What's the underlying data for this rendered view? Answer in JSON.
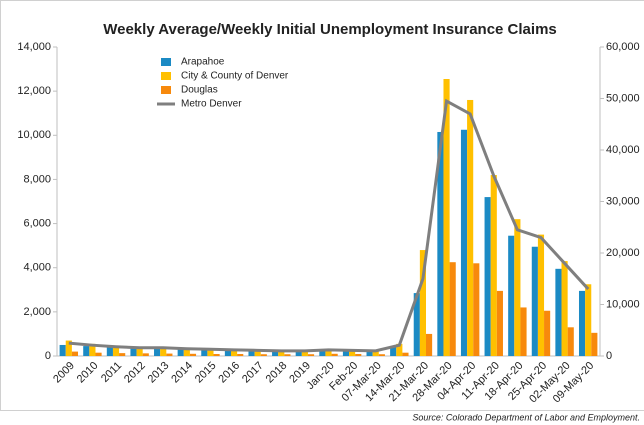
{
  "chart_data": {
    "type": "bar+line",
    "title": "Weekly Average/Weekly Initial Unemployment Insurance Claims",
    "source": "Source: Colorado Department of Labor and Employment.",
    "categories": [
      "2009",
      "2010",
      "2011",
      "2012",
      "2013",
      "2014",
      "2015",
      "2016",
      "2017",
      "2018",
      "2019",
      "Jan-20",
      "Feb-20",
      "07-Mar-20",
      "14-Mar-20",
      "21-Mar-20",
      "28-Mar-20",
      "04-Apr-20",
      "11-Apr-20",
      "18-Apr-20",
      "25-Apr-20",
      "02-May-20",
      "09-May-20"
    ],
    "series": [
      {
        "name": "Arapahoe",
        "color": "#1b8ac4",
        "type": "bar",
        "values": [
          500,
          450,
          400,
          350,
          350,
          300,
          280,
          270,
          250,
          230,
          230,
          270,
          250,
          230,
          450,
          2850,
          10150,
          10250,
          7200,
          5450,
          4950,
          3950,
          2950
        ]
      },
      {
        "name": "City & County of Denver",
        "color": "#ffc000",
        "type": "bar",
        "values": [
          700,
          550,
          450,
          420,
          400,
          350,
          330,
          310,
          280,
          260,
          260,
          300,
          280,
          280,
          550,
          4800,
          12550,
          11600,
          8200,
          6200,
          5500,
          4300,
          3250
        ]
      },
      {
        "name": "Douglas",
        "color": "#f7890c",
        "type": "bar",
        "values": [
          200,
          150,
          130,
          120,
          110,
          100,
          90,
          90,
          80,
          80,
          80,
          100,
          90,
          80,
          150,
          1000,
          4250,
          4200,
          2950,
          2200,
          2050,
          1300,
          1050
        ]
      },
      {
        "name": "Metro Denver",
        "color": "#7f7f7f",
        "type": "line",
        "axis": "y2",
        "values": [
          2500,
          2100,
          1800,
          1600,
          1600,
          1400,
          1300,
          1200,
          1100,
          1000,
          1000,
          1200,
          1100,
          1000,
          2100,
          15000,
          49500,
          47000,
          35000,
          24500,
          23000,
          18000,
          13000
        ]
      }
    ],
    "ylim": [
      0,
      14000
    ],
    "yticks": [
      0,
      {
        "value": 2000,
        "label": "2,000"
      },
      {
        "value": 4000,
        "label": "4,000"
      },
      {
        "value": 6000,
        "label": "6,000"
      },
      {
        "value": 8000,
        "label": "8,000"
      },
      {
        "value": 10000,
        "label": "10,000"
      },
      {
        "value": 12000,
        "label": "12,000"
      },
      {
        "value": 14000,
        "label": "14,000"
      }
    ],
    "y2lim": [
      0,
      60000
    ],
    "y2ticks": [
      0,
      {
        "value": 10000,
        "label": "10,000"
      },
      {
        "value": 20000,
        "label": "20,000"
      },
      {
        "value": 30000,
        "label": "30,000"
      },
      {
        "value": 40000,
        "label": "40,000"
      },
      {
        "value": 50000,
        "label": "50,000"
      },
      {
        "value": 60000,
        "label": "60,000"
      }
    ],
    "grid": false,
    "legend": "top-left"
  }
}
